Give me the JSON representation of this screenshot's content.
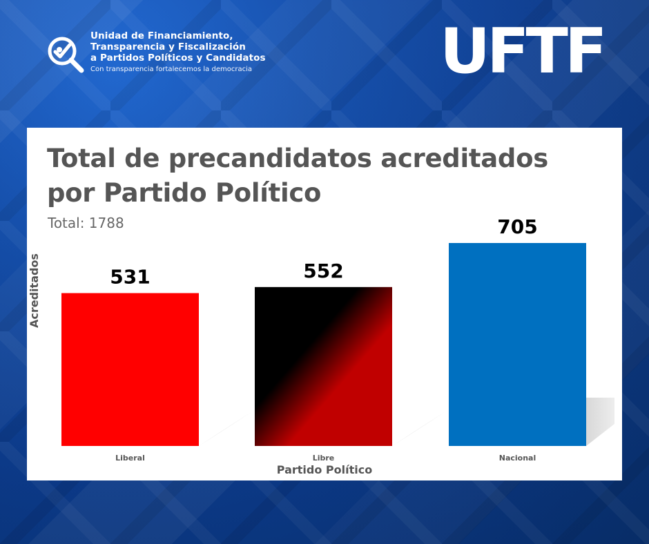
{
  "header": {
    "org_lines": [
      "Unidad de Financiamiento,",
      "Transparencia y Fiscalización",
      "a Partidos Políticos y Candidatos"
    ],
    "tagline": "Con transparencia fortalecemos la democracia",
    "brand": "UFTF",
    "icon": "magnifier-check-icon"
  },
  "colors": {
    "background": "#0b3d91",
    "panel": "#ffffff",
    "title": "#555555",
    "text": "#000000",
    "liberal": "#ff0000",
    "libre_dark": "#000000",
    "libre_red": "#c00000",
    "nacional": "#0070c0"
  },
  "chart_data": {
    "type": "bar",
    "title": "Total de precandidatos acreditados por Partido Político",
    "title_lines": [
      "Total de precandidatos acreditados",
      "por Partido Político"
    ],
    "subtitle": "Total: 1788",
    "xlabel": "Partido Político",
    "ylabel": "Acreditados",
    "categories": [
      "Liberal",
      "Libre",
      "Nacional"
    ],
    "values": [
      531,
      552,
      705
    ],
    "ylim": [
      0,
      705
    ],
    "grid": false,
    "legend": "none"
  }
}
